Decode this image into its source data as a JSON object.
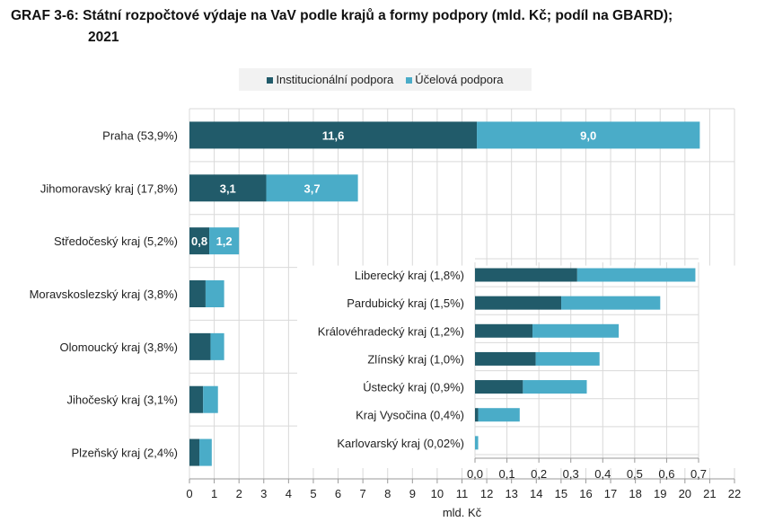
{
  "chart_data": [
    {
      "type": "bar",
      "orientation": "horizontal",
      "stacked": true,
      "title": "GRAF 3-6: Státní rozpočtové výdaje na VaV podle krajů a forma podpory (mld. Kč; podíl na GBARD); 2021",
      "title_line1": "GRAF 3-6: Státní rozpočtové výdaje na VaV podle krajů a formy podpory (mld. Kč; podíl na GBARD);",
      "title_line2": "2021",
      "xlabel": "mld. Kč",
      "xlim": [
        0,
        22
      ],
      "xticks": [
        "0",
        "1",
        "2",
        "3",
        "4",
        "5",
        "6",
        "7",
        "8",
        "9",
        "10",
        "11",
        "12",
        "13",
        "14",
        "15",
        "16",
        "17",
        "18",
        "19",
        "20",
        "21",
        "22"
      ],
      "grid": true,
      "legend_position": "top",
      "categories": [
        "Praha (53,9%)",
        "Jihomoravský kraj (17,8%)",
        "Středočeský kraj (5,2%)",
        "Moravskoslezský kraj (3,8%)",
        "Olomoucký kraj (3,8%)",
        "Jihočeský kraj (3,1%)",
        "Plzeňský kraj (2,4%)"
      ],
      "series": [
        {
          "name": "Institucionální podpora",
          "color": "#215b6a",
          "values": [
            11.6,
            3.1,
            0.8,
            0.65,
            0.85,
            0.55,
            0.4
          ],
          "labels": [
            "11,6",
            "3,1",
            "0,8",
            "",
            "",
            "",
            ""
          ]
        },
        {
          "name": "Účelová podpora",
          "color": "#4aacc8",
          "values": [
            9.0,
            3.7,
            1.2,
            0.75,
            0.55,
            0.6,
            0.5
          ],
          "labels": [
            "9,0",
            "3,7",
            "1,2",
            "",
            "",
            "",
            ""
          ]
        }
      ]
    },
    {
      "type": "bar",
      "orientation": "horizontal",
      "stacked": true,
      "inset": true,
      "xlim": [
        0,
        0.7
      ],
      "xticks": [
        "0,0",
        "0,1",
        "0,2",
        "0,3",
        "0,4",
        "0,5",
        "0,6",
        "0,7"
      ],
      "grid": true,
      "categories": [
        "Liberecký kraj (1,8%)",
        "Pardubický kraj (1,5%)",
        "Královéhradecký kraj (1,2%)",
        "Zlínský kraj (1,0%)",
        "Ústecký kraj (0,9%)",
        "Kraj Vysočina (0,4%)",
        "Karlovarský kraj (0,02%)"
      ],
      "series": [
        {
          "name": "Institucionální podpora",
          "color": "#215b6a",
          "values": [
            0.32,
            0.27,
            0.18,
            0.19,
            0.15,
            0.01,
            0.0
          ]
        },
        {
          "name": "Účelová podpora",
          "color": "#4aacc8",
          "values": [
            0.37,
            0.31,
            0.27,
            0.2,
            0.2,
            0.13,
            0.01
          ]
        }
      ]
    }
  ]
}
